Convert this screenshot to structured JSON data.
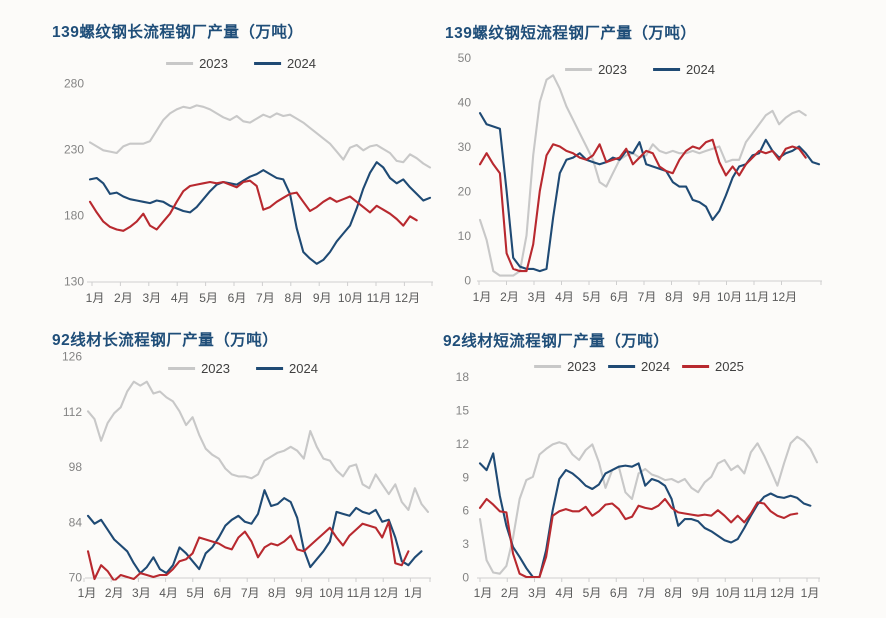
{
  "page": {
    "background": "#fcfbf9"
  },
  "palette": {
    "title_navy": "#1f4e79",
    "series_2023_gray": "#c8c8c8",
    "series_2024_navy": "#1f4a74",
    "series_2025_red": "#b8292f",
    "axis_line": "#cfcfcf",
    "y_tick_text": "#848484",
    "x_tick_text": "#595959",
    "legend_text": "#404040"
  },
  "chart_data": [
    {
      "id": "rebar-long-process",
      "type": "line",
      "title": "139螺纹钢长流程钢厂产量（万吨）",
      "ylim": [
        130,
        280
      ],
      "yticks": [
        280,
        230,
        180,
        130
      ],
      "grid": false,
      "legend_position": "top",
      "x_labels": [
        "1月",
        "2月",
        "3月",
        "4月",
        "5月",
        "6月",
        "7月",
        "8月",
        "9月",
        "10月",
        "11月",
        "12月"
      ],
      "series": [
        {
          "name": "2023",
          "color": "#c8c8c8",
          "in_legend": true,
          "values": [
            235,
            232,
            229,
            228,
            227,
            232,
            234,
            234,
            234,
            236,
            244,
            252,
            257,
            260,
            262,
            261,
            263,
            262,
            260,
            257,
            254,
            252,
            255,
            251,
            250,
            253,
            256,
            254,
            257,
            255,
            256,
            253,
            250,
            246,
            242,
            238,
            234,
            228,
            222,
            231,
            233,
            229,
            232,
            233,
            230,
            227,
            221,
            220,
            226,
            223,
            219,
            216
          ]
        },
        {
          "name": "2024",
          "color": "#1f4a74",
          "in_legend": true,
          "values": [
            207,
            208,
            204,
            196,
            197,
            194,
            192,
            191,
            190,
            189,
            191,
            190,
            187,
            185,
            183,
            182,
            186,
            192,
            198,
            203,
            205,
            204,
            203,
            206,
            209,
            211,
            214,
            211,
            208,
            207,
            196,
            170,
            152,
            147,
            143,
            146,
            152,
            160,
            166,
            172,
            185,
            200,
            212,
            220,
            216,
            208,
            204,
            207,
            201,
            196,
            191,
            193
          ]
        },
        {
          "name": "2025",
          "color": "#b8292f",
          "in_legend": false,
          "values": [
            190,
            182,
            175,
            171,
            169,
            168,
            171,
            175,
            181,
            172,
            169,
            175,
            181,
            190,
            198,
            202,
            203,
            204,
            205,
            204,
            205,
            203,
            201,
            205,
            206,
            202,
            184,
            186,
            190,
            193,
            196,
            197,
            190,
            183,
            186,
            190,
            193,
            190,
            192,
            194,
            190,
            186,
            182,
            187,
            184,
            181,
            177,
            172,
            179,
            176
          ]
        }
      ]
    },
    {
      "id": "rebar-short-process",
      "type": "line",
      "title": "139螺纹钢短流程钢厂产量（万吨）",
      "ylim": [
        0,
        50
      ],
      "yticks": [
        50,
        40,
        30,
        20,
        10,
        0
      ],
      "grid": false,
      "legend_position": "top",
      "x_labels": [
        "1月",
        "2月",
        "3月",
        "4月",
        "5月",
        "6月",
        "7月",
        "8月",
        "9月",
        "10月",
        "11月",
        "12月"
      ],
      "series": [
        {
          "name": "2023",
          "color": "#c8c8c8",
          "in_legend": true,
          "values": [
            13.5,
            9,
            2,
            1,
            1,
            1,
            2,
            10,
            28,
            40,
            45,
            46,
            43,
            39,
            36,
            33,
            30,
            27,
            22,
            21,
            24,
            27,
            28,
            28.5,
            27.5,
            28,
            30.5,
            29,
            28.5,
            29,
            28.5,
            28.5,
            29,
            28.5,
            29,
            29.5,
            30,
            26.5,
            27,
            27,
            31,
            33,
            35,
            37,
            38,
            35,
            36.5,
            37.5,
            38,
            37
          ]
        },
        {
          "name": "2024",
          "color": "#1f4a74",
          "in_legend": true,
          "values": [
            37.5,
            35,
            34.5,
            34,
            20,
            5,
            3,
            2.5,
            2.5,
            2,
            2.5,
            14,
            24,
            27,
            27.5,
            28.5,
            27,
            26.5,
            26,
            26.5,
            27.5,
            27,
            29,
            28.5,
            31,
            26,
            25.5,
            25,
            24.5,
            22,
            21,
            21,
            18,
            17.5,
            16.5,
            13.5,
            15.5,
            19,
            23,
            25.5,
            26,
            28,
            28.5,
            31.5,
            29,
            27.5,
            28.5,
            29,
            30,
            28.5,
            26.5,
            26
          ]
        },
        {
          "name": "2025",
          "color": "#b8292f",
          "in_legend": false,
          "values": [
            26,
            28.5,
            26,
            24,
            6,
            2.5,
            2,
            2,
            8,
            20,
            28,
            30.5,
            30,
            29,
            28.5,
            27.5,
            27,
            28,
            30.5,
            26.5,
            27,
            27.5,
            29.5,
            26,
            27.5,
            29,
            28.5,
            25.5,
            24.5,
            24,
            27,
            29,
            30,
            29.5,
            31,
            31.5,
            26.5,
            23.5,
            25.5,
            23.5,
            26,
            27.5,
            29,
            28.5,
            29,
            27,
            29.5,
            30,
            29.5,
            27.5
          ]
        }
      ]
    },
    {
      "id": "wirerod-long-process",
      "type": "line",
      "title": "92线材长流程钢厂产量（万吨）",
      "ylim": [
        70,
        126
      ],
      "yticks": [
        126,
        112,
        98,
        84,
        70
      ],
      "grid": false,
      "legend_position": "top",
      "x_labels": [
        "1月",
        "2月",
        "3月",
        "4月",
        "5月",
        "6月",
        "7月",
        "8月",
        "9月",
        "10月",
        "11月",
        "12月",
        "1月"
      ],
      "series": [
        {
          "name": "2023",
          "color": "#c8c8c8",
          "in_legend": true,
          "values": [
            112,
            110,
            104.5,
            109,
            111.5,
            113,
            117,
            119.5,
            118.5,
            119.5,
            116.5,
            117,
            115.5,
            114.5,
            112,
            108.5,
            110.5,
            106,
            102.5,
            101,
            100,
            97.5,
            96,
            95.5,
            95.5,
            95,
            96,
            99.5,
            100.5,
            101.5,
            102,
            103,
            102,
            100,
            107,
            103,
            100,
            99.5,
            97,
            95.5,
            98,
            98.5,
            93.5,
            92.5,
            96,
            93.5,
            91,
            93.5,
            89,
            87,
            92.5,
            88.5,
            86.5
          ]
        },
        {
          "name": "2024",
          "color": "#1f4a74",
          "in_legend": true,
          "values": [
            85.5,
            83.5,
            84.5,
            82,
            79.5,
            78,
            76.5,
            73.5,
            71,
            72.5,
            75,
            72,
            71,
            73,
            77.5,
            76,
            74,
            72,
            76,
            77.5,
            80,
            83,
            84.5,
            85.5,
            84,
            83.5,
            86,
            92,
            88,
            88.5,
            90,
            89,
            85,
            77,
            72.5,
            74.5,
            76.5,
            79,
            86.5,
            86,
            85.5,
            87.5,
            86.5,
            86,
            87,
            84,
            84.5,
            80,
            74,
            73,
            75,
            76.5
          ]
        },
        {
          "name": "2025",
          "color": "#b8292f",
          "in_legend": false,
          "values": [
            76.5,
            69.5,
            73,
            71.5,
            69,
            70.5,
            70,
            69.5,
            71,
            70.5,
            70,
            70.5,
            70.5,
            72,
            74,
            74.5,
            76,
            80,
            79.5,
            79,
            78.5,
            77.5,
            77,
            80,
            81.5,
            79,
            75,
            77.5,
            78.5,
            78,
            79,
            80.5,
            77,
            76.5,
            78,
            79.5,
            81,
            82.5,
            80,
            78,
            80.5,
            82,
            83.5,
            83,
            82.5,
            80,
            84,
            73.5,
            73,
            76.5
          ]
        }
      ]
    },
    {
      "id": "wirerod-short-process",
      "type": "line",
      "title": "92线材短流程钢厂产量（万吨）",
      "ylim": [
        0,
        18
      ],
      "yticks": [
        18,
        15,
        12,
        9,
        6,
        3,
        0
      ],
      "grid": false,
      "legend_position": "top",
      "x_labels": [
        "1月",
        "2月",
        "3月",
        "4月",
        "5月",
        "6月",
        "7月",
        "8月",
        "9月",
        "10月",
        "11月",
        "12月",
        "1月"
      ],
      "series": [
        {
          "name": "2023",
          "color": "#c8c8c8",
          "in_legend": true,
          "values": [
            5.2,
            1.5,
            0.4,
            0.3,
            1,
            3.5,
            7,
            8.7,
            9,
            11,
            11.5,
            11.9,
            12.1,
            11.9,
            11,
            10.5,
            11.4,
            11.9,
            10.3,
            8,
            9.6,
            9.9,
            7.6,
            7,
            9.3,
            9.7,
            9.2,
            9,
            8.7,
            8.8,
            8.5,
            8.8,
            8,
            7.6,
            8.5,
            9,
            10.2,
            10.5,
            9.6,
            10,
            9.3,
            11.2,
            12,
            10.9,
            9.6,
            8.2,
            10.2,
            12,
            12.6,
            12.2,
            11.5,
            10.3
          ]
        },
        {
          "name": "2024",
          "color": "#1f4a74",
          "in_legend": true,
          "values": [
            10.2,
            9.6,
            11.1,
            7.3,
            4.6,
            2.7,
            1.8,
            0.8,
            0,
            0,
            2.4,
            6,
            8.8,
            9.6,
            9.3,
            8.8,
            8.2,
            7.9,
            8.3,
            9.3,
            9.6,
            9.9,
            10,
            9.9,
            10.2,
            8.2,
            8.8,
            8.6,
            8.2,
            7,
            4.6,
            5.2,
            5.2,
            5,
            4.4,
            4.1,
            3.7,
            3.3,
            3.1,
            3.4,
            4.4,
            5.5,
            6.5,
            7.2,
            7.5,
            7.2,
            7.1,
            7.3,
            7.1,
            6.6,
            6.4
          ]
        },
        {
          "name": "2025",
          "color": "#b8292f",
          "in_legend": true,
          "values": [
            6.2,
            7,
            6.5,
            5.9,
            5.8,
            2.1,
            0.3,
            0,
            0,
            0,
            1.8,
            5.5,
            5.9,
            6.1,
            5.9,
            5.9,
            6.3,
            5.5,
            5.9,
            6.5,
            6.6,
            6.1,
            5.2,
            5.4,
            6.4,
            6.2,
            6.1,
            6.4,
            7,
            6.2,
            5.8,
            5.7,
            5.6,
            5.5,
            5.6,
            5.5,
            6,
            5.5,
            4.9,
            5.5,
            4.9,
            5.7,
            6.7,
            6.6,
            5.9,
            5.5,
            5.3,
            5.6,
            5.7
          ]
        }
      ]
    }
  ]
}
